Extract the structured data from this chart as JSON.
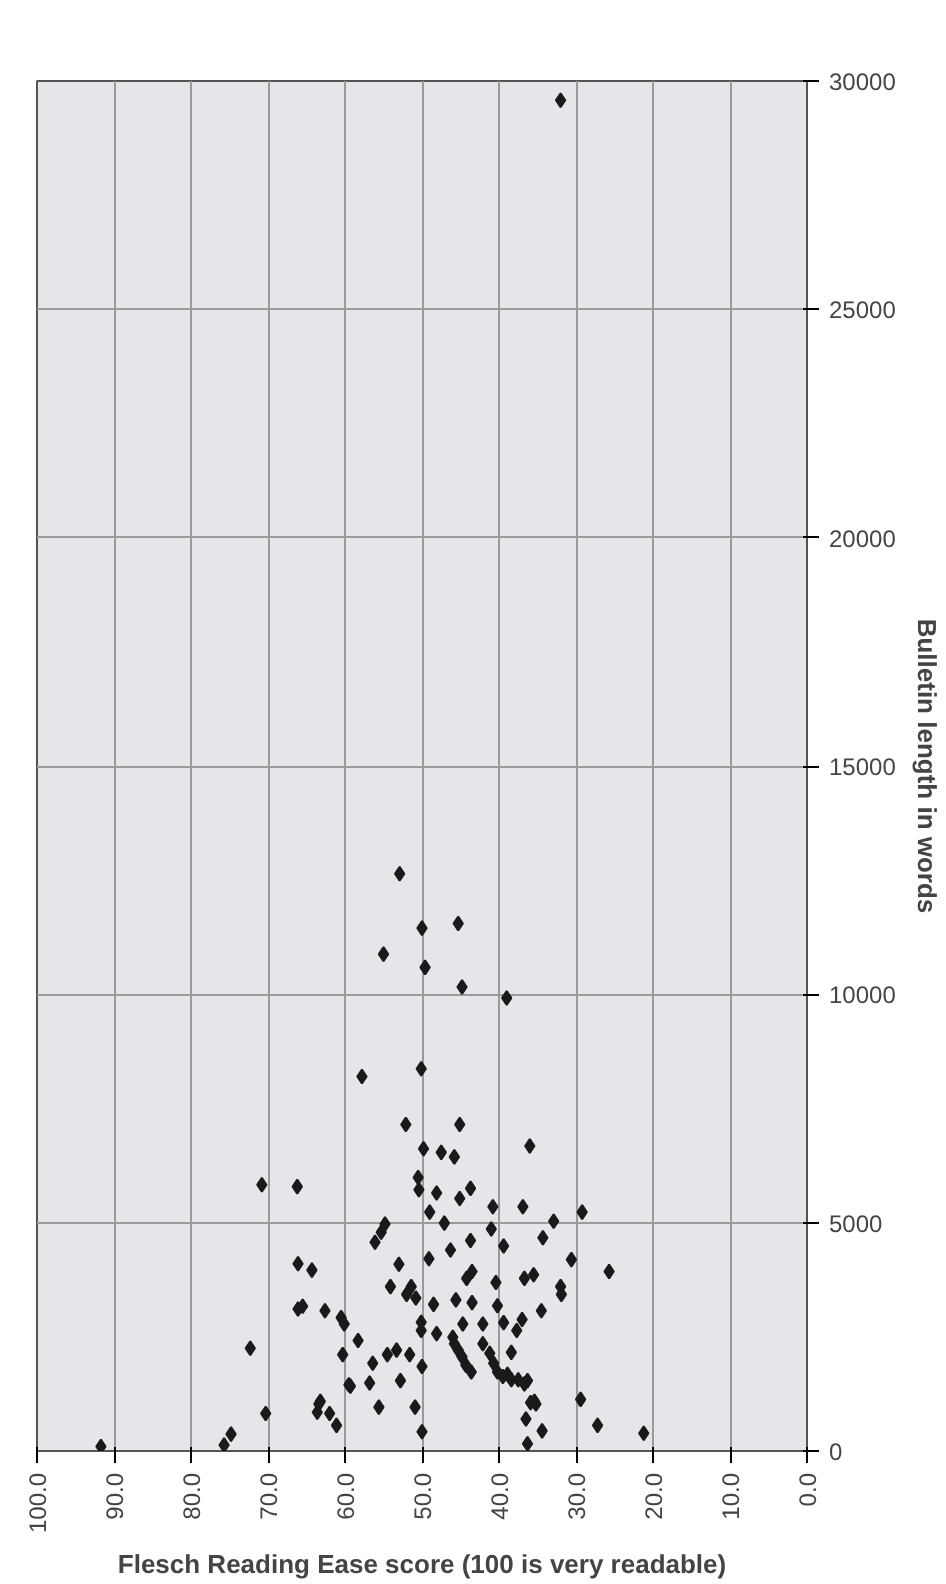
{
  "chart_data": {
    "type": "scatter",
    "xlabel": "Flesch Reading Ease score (100 is very readable)",
    "ylabel": "Bulletin length in words",
    "x": [
      32.0,
      52.9,
      50.0,
      45.3,
      55.0,
      49.6,
      44.8,
      39.0,
      57.8,
      50.1,
      52.1,
      45.1,
      49.8,
      47.5,
      45.8,
      36.0,
      50.5,
      50.4,
      48.1,
      43.7,
      45.1,
      70.8,
      66.2,
      40.8,
      36.9,
      49.0,
      47.1,
      54.8,
      55.3,
      56.1,
      41.0,
      43.7,
      39.4,
      46.3,
      66.1,
      64.3,
      53.0,
      49.1,
      43.5,
      44.2,
      40.4,
      36.7,
      35.5,
      54.1,
      51.4,
      52.0,
      50.8,
      48.5,
      45.6,
      43.5,
      40.2,
      37.0,
      65.5,
      66.1,
      62.6,
      60.5,
      60.1,
      50.1,
      50.1,
      48.1,
      44.7,
      42.1,
      39.4,
      46.0,
      45.8,
      45.3,
      44.8,
      44.3,
      43.6,
      42.1,
      41.2,
      40.7,
      40.2,
      38.4,
      72.3,
      58.3,
      60.3,
      54.5,
      53.3,
      51.6,
      56.4,
      50.0,
      59.5,
      56.8,
      52.8,
      63.2,
      38.9,
      37.5,
      36.3,
      29.2,
      32.9,
      34.3,
      30.6,
      25.7,
      32.0,
      31.9,
      34.5,
      37.7,
      39.5,
      38.4,
      36.7,
      35.4,
      29.4,
      91.7,
      75.7,
      74.8,
      70.3,
      63.4,
      63.6,
      62.0,
      61.1,
      59.3,
      55.6,
      50.9,
      50.0,
      35.9,
      35.2,
      36.5,
      36.3,
      34.4,
      27.2,
      21.2
    ],
    "values": [
      29580,
      12640,
      11450,
      11550,
      10880,
      10590,
      10160,
      9920,
      8200,
      8370,
      7150,
      7150,
      6620,
      6540,
      6440,
      6680,
      5990,
      5720,
      5650,
      5750,
      5530,
      5830,
      5790,
      5350,
      5350,
      5230,
      4990,
      4970,
      4790,
      4570,
      4860,
      4610,
      4490,
      4400,
      4100,
      3960,
      4090,
      4210,
      3930,
      3780,
      3690,
      3780,
      3860,
      3600,
      3600,
      3430,
      3350,
      3210,
      3310,
      3250,
      3180,
      2880,
      3170,
      3110,
      3070,
      2920,
      2780,
      2820,
      2640,
      2570,
      2780,
      2780,
      2810,
      2490,
      2350,
      2210,
      2060,
      1880,
      1730,
      2350,
      2140,
      1920,
      1730,
      2160,
      2250,
      2420,
      2110,
      2110,
      2210,
      2110,
      1920,
      1850,
      1450,
      1490,
      1540,
      1090,
      1680,
      1560,
      1540,
      5230,
      5030,
      4670,
      4190,
      3930,
      3600,
      3430,
      3070,
      2640,
      1630,
      1560,
      1470,
      1090,
      1130,
      100,
      130,
      370,
      820,
      1030,
      850,
      820,
      560,
      1420,
      960,
      960,
      420,
      1060,
      1030,
      700,
      160,
      440,
      560,
      390
    ],
    "color": "#1a1a1a",
    "marker": "diamond",
    "xlim": [
      100,
      0
    ],
    "xticks": [
      {
        "value": 100,
        "label": "100.0"
      },
      {
        "value": 90,
        "label": "90.0"
      },
      {
        "value": 80,
        "label": "80.0"
      },
      {
        "value": 70,
        "label": "70.0"
      },
      {
        "value": 60,
        "label": "60.0"
      },
      {
        "value": 50,
        "label": "50.0"
      },
      {
        "value": 40,
        "label": "40.0"
      },
      {
        "value": 30,
        "label": "30.0"
      },
      {
        "value": 20,
        "label": "20.0"
      },
      {
        "value": 10,
        "label": "10.0"
      },
      {
        "value": 0,
        "label": "0.0"
      }
    ],
    "ylim": [
      0,
      30000
    ],
    "yticks": [
      0,
      5000,
      10000,
      15000,
      20000,
      25000,
      30000
    ],
    "grid": true
  }
}
